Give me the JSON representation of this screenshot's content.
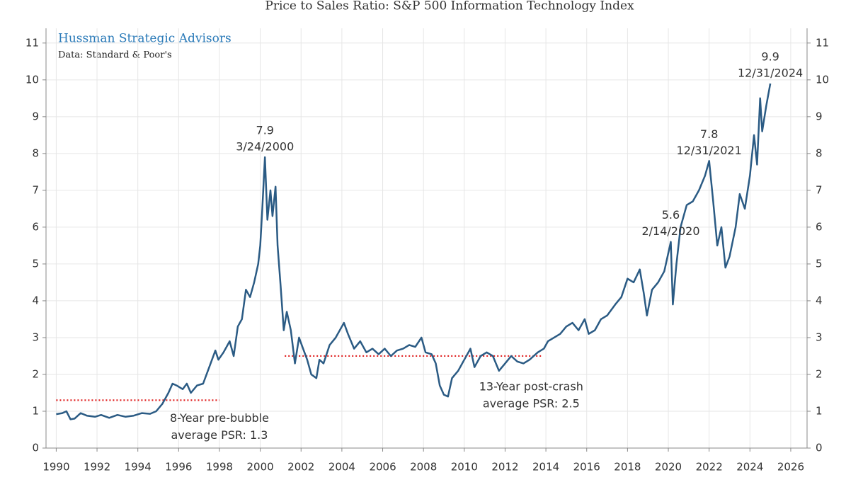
{
  "chart_data": {
    "type": "line",
    "title": "Price to Sales Ratio: S&P 500 Information Technology Index",
    "brand": "Hussman Strategic Advisors",
    "source": "Data: Standard & Poor's",
    "xlim": [
      1989.5,
      2026.8
    ],
    "xticks": [
      1990,
      1992,
      1994,
      1996,
      1998,
      2000,
      2002,
      2004,
      2006,
      2008,
      2010,
      2012,
      2014,
      2016,
      2018,
      2020,
      2022,
      2024,
      2026
    ],
    "ylim": [
      0,
      11.4
    ],
    "yticks": [
      0,
      1,
      2,
      3,
      4,
      5,
      6,
      7,
      8,
      9,
      10,
      11
    ],
    "grid": true,
    "series": [
      {
        "color": "#2b5b84",
        "x": [
          1990.0,
          1990.3,
          1990.5,
          1990.7,
          1990.9,
          1991.2,
          1991.5,
          1991.9,
          1992.2,
          1992.6,
          1993.0,
          1993.4,
          1993.8,
          1994.2,
          1994.6,
          1994.9,
          1995.2,
          1995.5,
          1995.7,
          1995.9,
          1996.2,
          1996.4,
          1996.6,
          1996.9,
          1997.2,
          1997.5,
          1997.8,
          1997.95,
          1998.2,
          1998.5,
          1998.7,
          1998.9,
          1999.1,
          1999.3,
          1999.5,
          1999.7,
          1999.9,
          2000.0,
          2000.1,
          2000.23,
          2000.35,
          2000.5,
          2000.6,
          2000.75,
          2000.85,
          2001.0,
          2001.15,
          2001.3,
          2001.5,
          2001.7,
          2001.9,
          2002.1,
          2002.3,
          2002.5,
          2002.75,
          2002.9,
          2003.1,
          2003.4,
          2003.7,
          2004.0,
          2004.1,
          2004.3,
          2004.6,
          2004.9,
          2005.2,
          2005.5,
          2005.8,
          2006.1,
          2006.4,
          2006.7,
          2007.0,
          2007.3,
          2007.6,
          2007.9,
          2008.1,
          2008.4,
          2008.6,
          2008.8,
          2009.0,
          2009.2,
          2009.4,
          2009.7,
          2010.0,
          2010.3,
          2010.5,
          2010.8,
          2011.1,
          2011.4,
          2011.7,
          2012.0,
          2012.3,
          2012.6,
          2012.9,
          2013.2,
          2013.6,
          2013.9,
          2014.1,
          2014.4,
          2014.7,
          2015.0,
          2015.3,
          2015.6,
          2015.9,
          2016.1,
          2016.4,
          2016.7,
          2017.0,
          2017.4,
          2017.7,
          2018.0,
          2018.3,
          2018.6,
          2018.8,
          2018.95,
          2019.2,
          2019.5,
          2019.8,
          2020.12,
          2020.22,
          2020.4,
          2020.6,
          2020.9,
          2021.2,
          2021.5,
          2021.8,
          2022.0,
          2022.2,
          2022.4,
          2022.6,
          2022.8,
          2023.0,
          2023.3,
          2023.5,
          2023.75,
          2024.0,
          2024.2,
          2024.35,
          2024.5,
          2024.6,
          2024.8,
          2025.0
        ],
        "values": [
          0.92,
          0.95,
          1.0,
          0.78,
          0.8,
          0.95,
          0.88,
          0.85,
          0.9,
          0.82,
          0.9,
          0.85,
          0.88,
          0.95,
          0.93,
          1.0,
          1.2,
          1.5,
          1.75,
          1.7,
          1.6,
          1.75,
          1.5,
          1.7,
          1.75,
          2.2,
          2.65,
          2.4,
          2.6,
          2.9,
          2.5,
          3.3,
          3.5,
          4.3,
          4.1,
          4.5,
          5.0,
          5.5,
          6.5,
          7.9,
          6.2,
          7.0,
          6.3,
          7.1,
          5.5,
          4.4,
          3.2,
          3.7,
          3.2,
          2.3,
          3.0,
          2.7,
          2.4,
          2.0,
          1.9,
          2.4,
          2.3,
          2.8,
          3.0,
          3.3,
          3.4,
          3.1,
          2.7,
          2.9,
          2.6,
          2.7,
          2.55,
          2.7,
          2.5,
          2.65,
          2.7,
          2.8,
          2.75,
          3.0,
          2.6,
          2.55,
          2.3,
          1.7,
          1.45,
          1.4,
          1.9,
          2.1,
          2.4,
          2.7,
          2.2,
          2.5,
          2.6,
          2.5,
          2.1,
          2.3,
          2.5,
          2.35,
          2.3,
          2.4,
          2.6,
          2.7,
          2.9,
          3.0,
          3.1,
          3.3,
          3.4,
          3.2,
          3.5,
          3.1,
          3.2,
          3.5,
          3.6,
          3.9,
          4.1,
          4.6,
          4.5,
          4.85,
          4.2,
          3.6,
          4.3,
          4.5,
          4.8,
          5.6,
          3.9,
          5.0,
          6.0,
          6.6,
          6.7,
          7.0,
          7.4,
          7.8,
          6.7,
          5.5,
          6.0,
          4.9,
          5.2,
          6.0,
          6.9,
          6.5,
          7.4,
          8.5,
          7.7,
          9.5,
          8.6,
          9.3,
          9.9
        ]
      }
    ],
    "peaks": [
      {
        "x": 2000.23,
        "y": 7.9,
        "label": "3/24/2000"
      },
      {
        "x": 2020.12,
        "y": 5.6,
        "label": "2/14/2020"
      },
      {
        "x": 2022.0,
        "y": 7.8,
        "label": "12/31/2021"
      },
      {
        "x": 2025.0,
        "y": 9.9,
        "label": "12/31/2024"
      }
    ],
    "averages": [
      {
        "x": [
          1990,
          1998
        ],
        "value": 1.3,
        "label": [
          "8-Year pre-bubble",
          "average PSR: 1.3"
        ]
      },
      {
        "x": [
          2001.2,
          2013.8
        ],
        "value": 2.5,
        "label": [
          "13-Year post-crash",
          "average PSR: 2.5"
        ]
      }
    ],
    "average_color": "#e02020"
  }
}
